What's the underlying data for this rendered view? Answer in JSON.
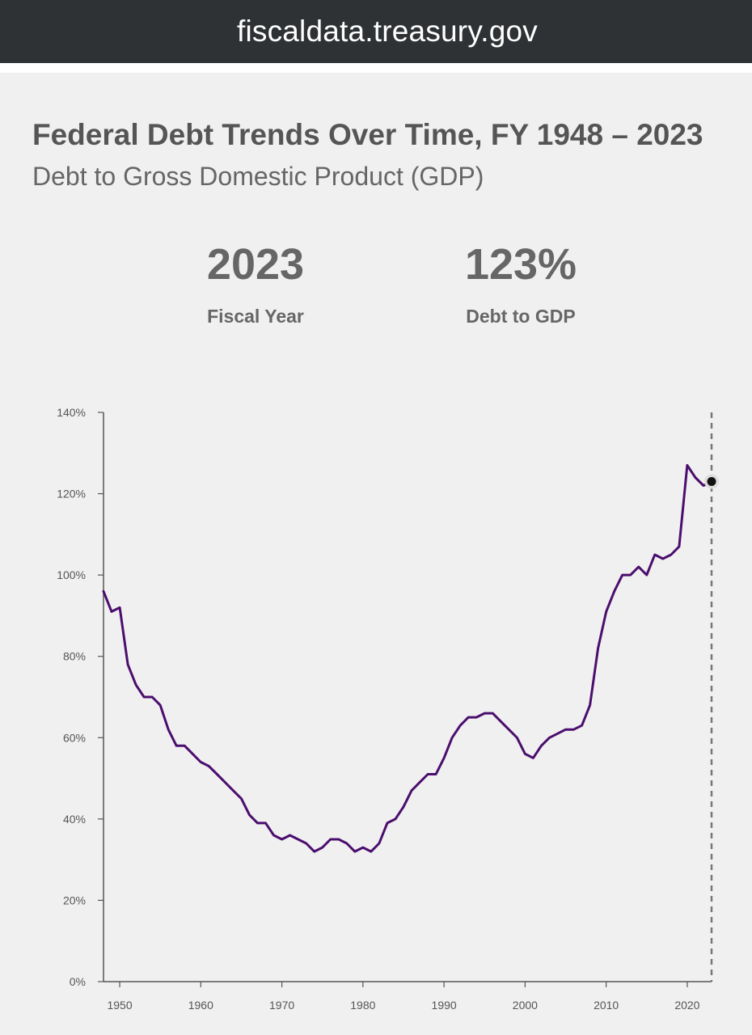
{
  "browser": {
    "url": "fiscaldata.treasury.gov"
  },
  "header": {
    "title": "Federal Debt Trends Over Time, FY 1948 – 2023",
    "subtitle": "Debt to Gross Domestic Product (GDP)"
  },
  "summary": {
    "year_value": "2023",
    "year_label": "Fiscal Year",
    "ratio_value": "123%",
    "ratio_label": "Debt to GDP"
  },
  "colors": {
    "line": "#4b0e6e",
    "marker": "#111111",
    "axis": "#555555",
    "highlight_line": "#777777"
  },
  "chart_data": {
    "type": "line",
    "title": "Federal Debt Trends Over Time, FY 1948 – 2023",
    "subtitle": "Debt to Gross Domestic Product (GDP)",
    "xlabel": "",
    "ylabel": "",
    "xlim": [
      1948,
      2023
    ],
    "ylim": [
      0,
      140
    ],
    "x_ticks": [
      1950,
      1960,
      1970,
      1980,
      1990,
      2000,
      2010,
      2020
    ],
    "x_tick_labels": [
      "1950",
      "1960",
      "1970",
      "1980",
      "1990",
      "2000",
      "2010",
      "2020"
    ],
    "y_ticks": [
      0,
      20,
      40,
      60,
      80,
      100,
      120,
      140
    ],
    "y_tick_labels": [
      "0%",
      "20%",
      "40%",
      "60%",
      "80%",
      "100%",
      "120%",
      "140%"
    ],
    "grid": false,
    "highlight": {
      "x": 2023,
      "y": 123
    },
    "series": [
      {
        "name": "Debt to GDP",
        "x": [
          1948,
          1949,
          1950,
          1951,
          1952,
          1953,
          1954,
          1955,
          1956,
          1957,
          1958,
          1959,
          1960,
          1961,
          1962,
          1963,
          1964,
          1965,
          1966,
          1967,
          1968,
          1969,
          1970,
          1971,
          1972,
          1973,
          1974,
          1975,
          1976,
          1977,
          1978,
          1979,
          1980,
          1981,
          1982,
          1983,
          1984,
          1985,
          1986,
          1987,
          1988,
          1989,
          1990,
          1991,
          1992,
          1993,
          1994,
          1995,
          1996,
          1997,
          1998,
          1999,
          2000,
          2001,
          2002,
          2003,
          2004,
          2005,
          2006,
          2007,
          2008,
          2009,
          2010,
          2011,
          2012,
          2013,
          2014,
          2015,
          2016,
          2017,
          2018,
          2019,
          2020,
          2021,
          2022,
          2023
        ],
        "values": [
          96,
          91,
          92,
          78,
          73,
          70,
          70,
          68,
          62,
          58,
          58,
          56,
          54,
          53,
          51,
          49,
          47,
          45,
          41,
          39,
          39,
          36,
          35,
          36,
          35,
          34,
          32,
          33,
          35,
          35,
          34,
          32,
          33,
          32,
          34,
          39,
          40,
          43,
          47,
          49,
          51,
          51,
          55,
          60,
          63,
          65,
          65,
          66,
          66,
          64,
          62,
          60,
          56,
          55,
          58,
          60,
          61,
          62,
          62,
          63,
          68,
          82,
          91,
          96,
          100,
          100,
          102,
          100,
          105,
          104,
          105,
          107,
          127,
          124,
          122,
          123
        ]
      }
    ]
  }
}
